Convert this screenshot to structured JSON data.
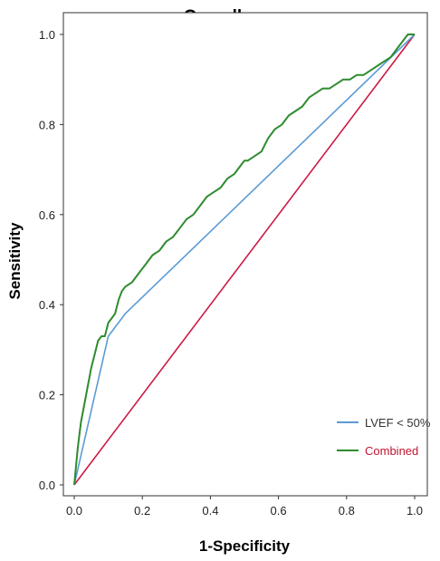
{
  "chart_data": {
    "type": "line",
    "title": "Overall",
    "xlabel": "1-Specificity",
    "ylabel": "Sensitivity",
    "xlim": [
      0,
      1
    ],
    "ylim": [
      0,
      1
    ],
    "x_ticks": [
      "0.0",
      "0.2",
      "0.4",
      "0.6",
      "0.8",
      "1.0"
    ],
    "y_ticks": [
      "0.0",
      "0.2",
      "0.4",
      "0.6",
      "0.8",
      "1.0"
    ],
    "grid": false,
    "legend_position": "bottom-right",
    "legend": [
      {
        "label": "LVEF < 50%",
        "color": "#5b9bd5"
      },
      {
        "label": "Combined",
        "color": "#c0152f"
      }
    ],
    "series": [
      {
        "color": "#cc1a44",
        "x": [
          0,
          1
        ],
        "y": [
          0,
          1
        ]
      },
      {
        "color": "#5b9bd5",
        "x": [
          0,
          0.1,
          0.15,
          1
        ],
        "y": [
          0,
          0.33,
          0.38,
          1
        ]
      },
      {
        "color": "#2e8b2e",
        "x": [
          0,
          0.005,
          0.01,
          0.015,
          0.02,
          0.03,
          0.04,
          0.05,
          0.06,
          0.07,
          0.08,
          0.09,
          0.1,
          0.11,
          0.12,
          0.13,
          0.14,
          0.15,
          0.17,
          0.19,
          0.21,
          0.23,
          0.25,
          0.27,
          0.29,
          0.31,
          0.33,
          0.35,
          0.37,
          0.39,
          0.41,
          0.43,
          0.45,
          0.47,
          0.49,
          0.5,
          0.51,
          0.53,
          0.55,
          0.57,
          0.59,
          0.61,
          0.63,
          0.65,
          0.67,
          0.69,
          0.71,
          0.73,
          0.75,
          0.77,
          0.79,
          0.81,
          0.83,
          0.85,
          0.87,
          0.89,
          0.91,
          0.93,
          0.95,
          0.96,
          0.97,
          0.98,
          0.99,
          1.0
        ],
        "y": [
          0,
          0.04,
          0.08,
          0.11,
          0.14,
          0.18,
          0.22,
          0.26,
          0.29,
          0.32,
          0.33,
          0.33,
          0.36,
          0.37,
          0.38,
          0.41,
          0.43,
          0.44,
          0.45,
          0.47,
          0.49,
          0.51,
          0.52,
          0.54,
          0.55,
          0.57,
          0.59,
          0.6,
          0.62,
          0.64,
          0.65,
          0.66,
          0.68,
          0.69,
          0.71,
          0.72,
          0.72,
          0.73,
          0.74,
          0.77,
          0.79,
          0.8,
          0.82,
          0.83,
          0.84,
          0.86,
          0.87,
          0.88,
          0.88,
          0.89,
          0.9,
          0.9,
          0.91,
          0.91,
          0.92,
          0.93,
          0.94,
          0.95,
          0.97,
          0.98,
          0.99,
          1.0,
          1.0,
          1.0
        ]
      }
    ]
  }
}
